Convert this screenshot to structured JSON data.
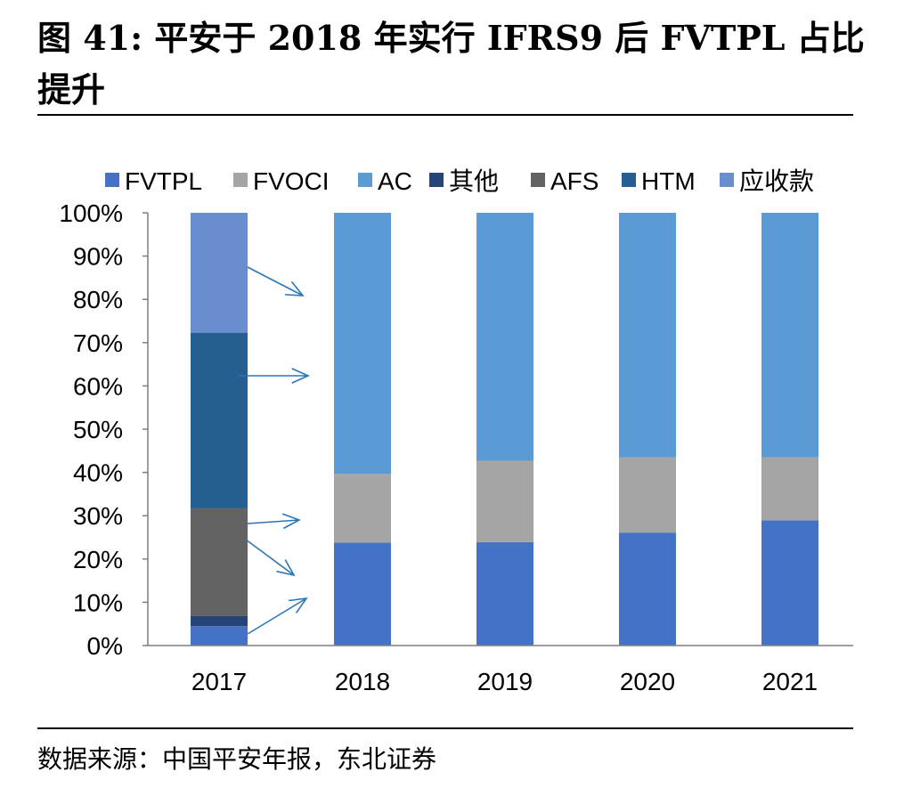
{
  "title": "图 41: 平安于 2018 年实行 IFRS9 后 FVTPL 占比提升",
  "source": "数据来源：中国平安年报，东北证券",
  "chart_data": {
    "type": "bar",
    "stacked": true,
    "categories": [
      "2017",
      "2018",
      "2019",
      "2020",
      "2021"
    ],
    "yticks": [
      "0%",
      "10%",
      "20%",
      "30%",
      "40%",
      "50%",
      "60%",
      "70%",
      "80%",
      "90%",
      "100%"
    ],
    "ylim": [
      0,
      100
    ],
    "legend_position": "top",
    "series": [
      {
        "name": "FVTPL",
        "color": "#4472C4",
        "values": [
          4.5,
          23.8,
          23.9,
          26.1,
          28.9
        ]
      },
      {
        "name": "FVOCI",
        "color": "#A5A5A5",
        "values": [
          0,
          15.9,
          18.8,
          17.4,
          14.6
        ]
      },
      {
        "name": "AC",
        "color": "#5B9BD5",
        "values": [
          0,
          60.3,
          57.3,
          56.5,
          56.5
        ]
      },
      {
        "name": "其他",
        "color": "#264478",
        "values": [
          2.3,
          0,
          0,
          0,
          0
        ]
      },
      {
        "name": "AFS",
        "color": "#636363",
        "values": [
          24.9,
          0,
          0,
          0,
          0
        ]
      },
      {
        "name": "HTM",
        "color": "#255E91",
        "values": [
          40.6,
          0,
          0,
          0,
          0
        ]
      },
      {
        "name": "应收款",
        "color": "#698ED0",
        "values": [
          27.7,
          0,
          0,
          0,
          0
        ]
      }
    ],
    "annotations": "arrows from 2017 segments pointing toward 2018",
    "arrow_color": "#2E75B6"
  }
}
